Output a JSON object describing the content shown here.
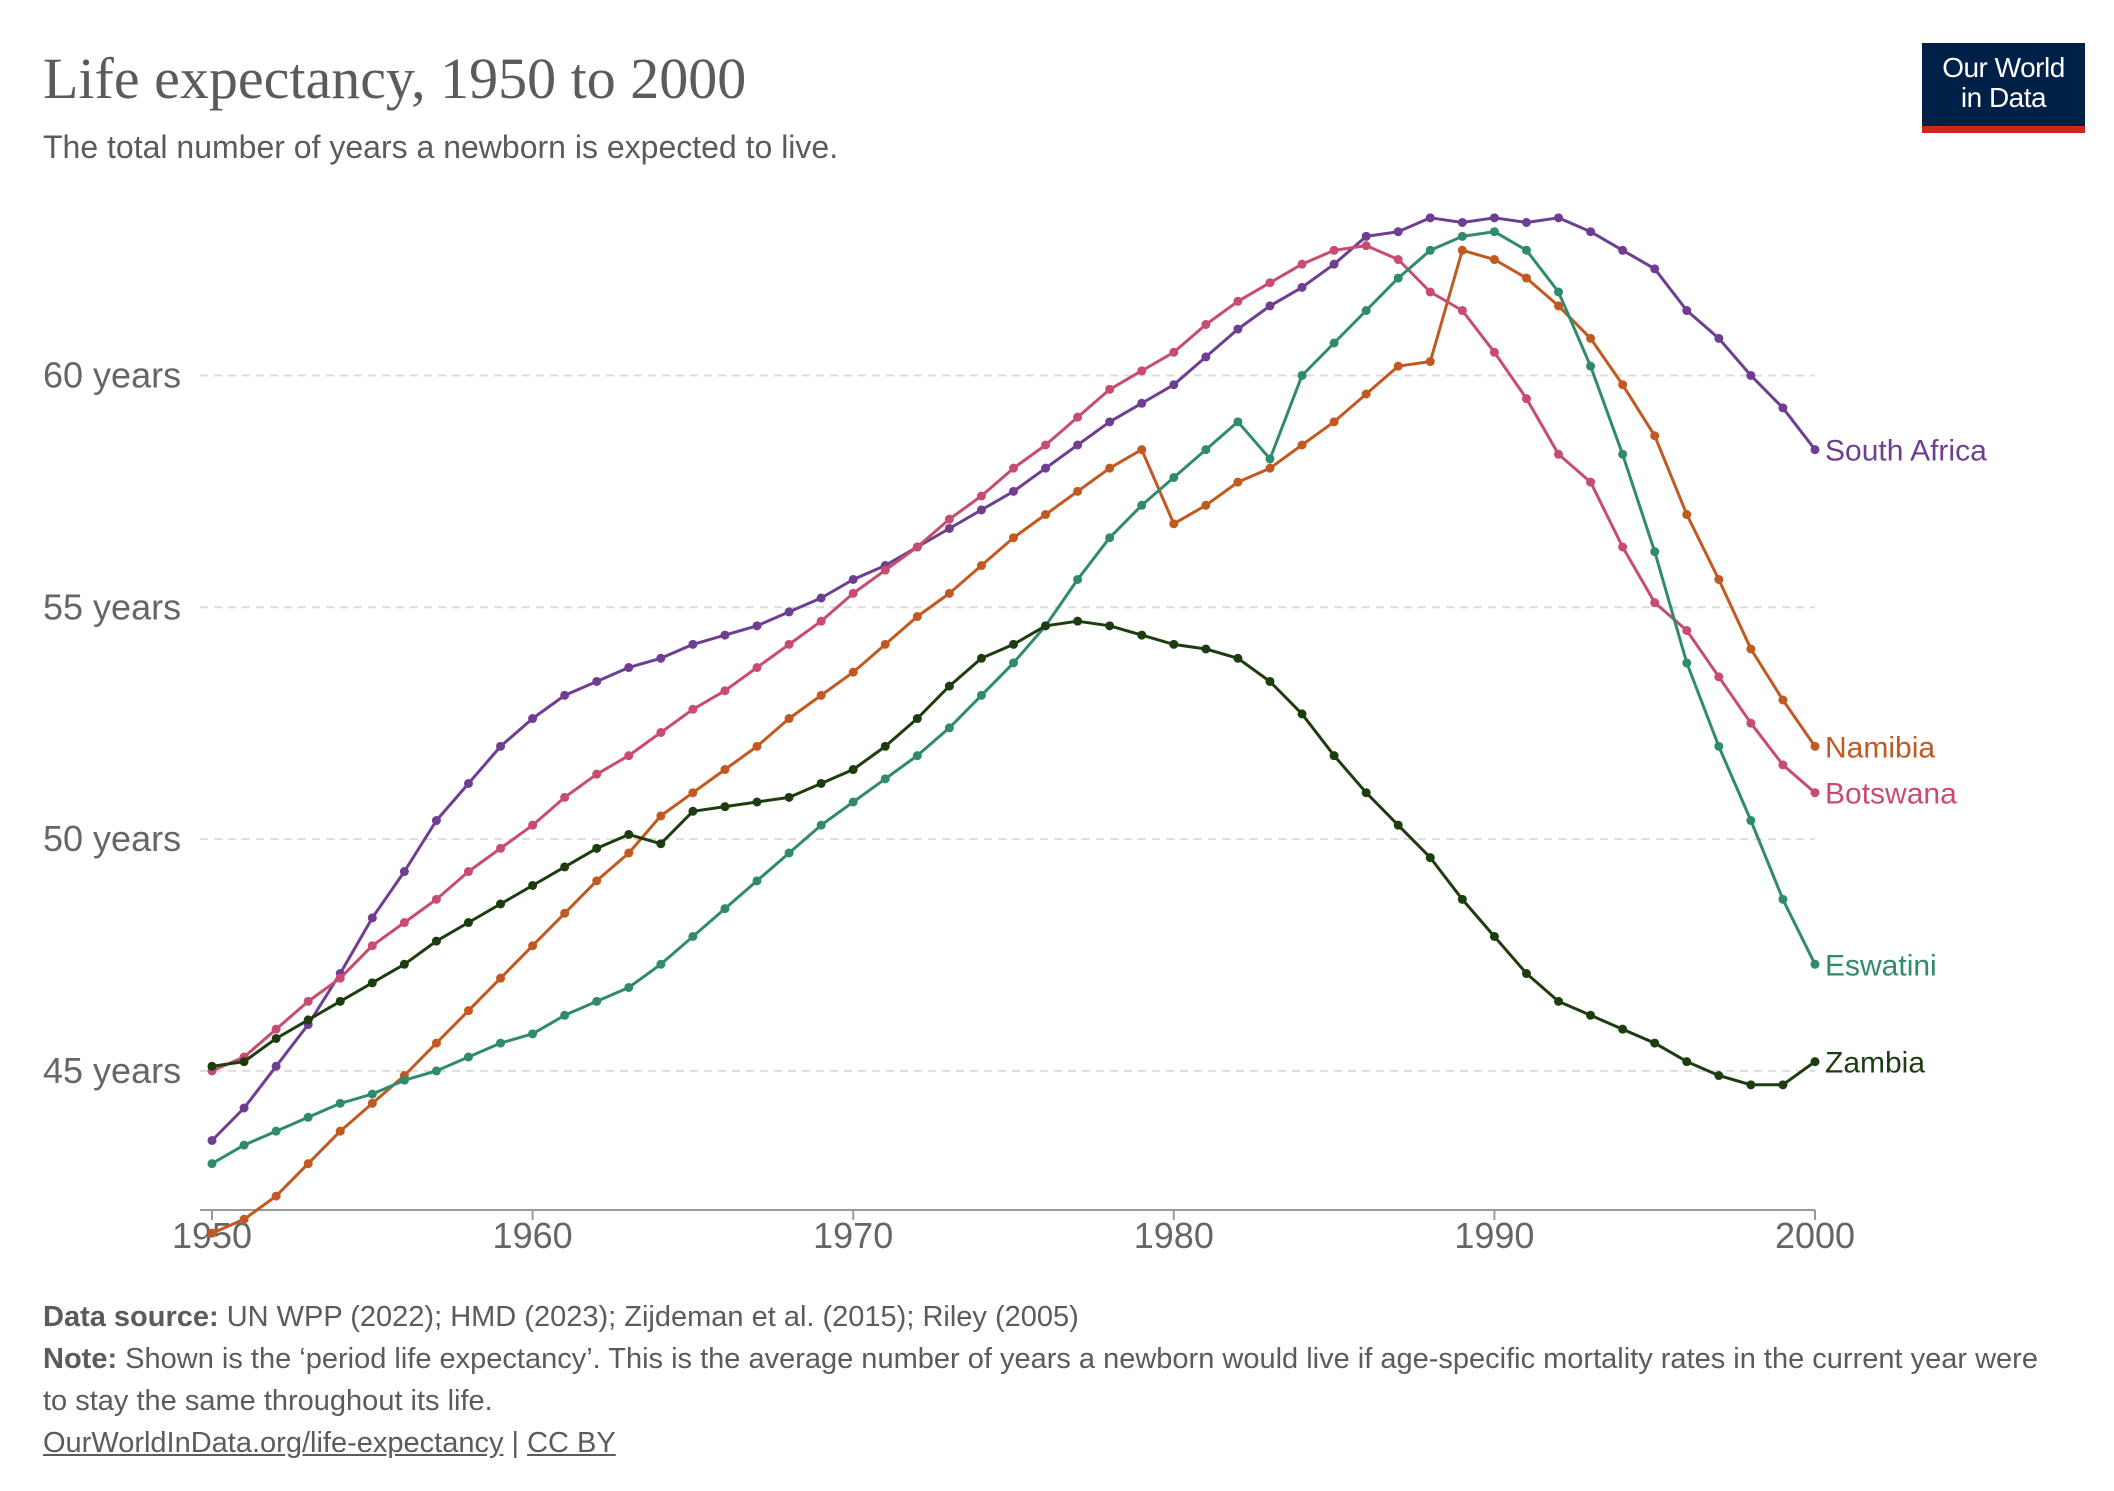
{
  "title": "Life expectancy, 1950 to 2000",
  "subtitle": "The total number of years a newborn is expected to live.",
  "logo": {
    "line1": "Our World",
    "line2": "in Data",
    "bg": "#002147",
    "accent": "#ce261e"
  },
  "footer": {
    "source_label": "Data source:",
    "source_text": " UN WPP (2022); HMD (2023); Zijdeman et al. (2015); Riley (2005)",
    "note_label": "Note:",
    "note_text": " Shown is the ‘period life expectancy’. This is the average number of years a newborn would live if age-specific mortality rates in the current year were to stay the same throughout its life.",
    "link_text": "OurWorldInData.org/life-expectancy",
    "separator": " | ",
    "license_text": "CC BY"
  },
  "chart_data": {
    "type": "line",
    "title": "Life expectancy, 1950 to 2000",
    "xlabel": "",
    "ylabel": "",
    "xlim": [
      1950,
      2000
    ],
    "ylim": [
      42,
      64
    ],
    "x_ticks": [
      {
        "value": 1950,
        "label": "1950"
      },
      {
        "value": 1960,
        "label": "1960"
      },
      {
        "value": 1970,
        "label": "1970"
      },
      {
        "value": 1980,
        "label": "1980"
      },
      {
        "value": 1990,
        "label": "1990"
      },
      {
        "value": 2000,
        "label": "2000"
      }
    ],
    "y_ticks": [
      {
        "value": 45,
        "label": "45 years"
      },
      {
        "value": 50,
        "label": "50 years"
      },
      {
        "value": 55,
        "label": "55 years"
      },
      {
        "value": 60,
        "label": "60 years"
      }
    ],
    "grid": true,
    "x": [
      1950,
      1951,
      1952,
      1953,
      1954,
      1955,
      1956,
      1957,
      1958,
      1959,
      1960,
      1961,
      1962,
      1963,
      1964,
      1965,
      1966,
      1967,
      1968,
      1969,
      1970,
      1971,
      1972,
      1973,
      1974,
      1975,
      1976,
      1977,
      1978,
      1979,
      1980,
      1981,
      1982,
      1983,
      1984,
      1985,
      1986,
      1987,
      1988,
      1989,
      1990,
      1991,
      1992,
      1993,
      1994,
      1995,
      1996,
      1997,
      1998,
      1999,
      2000
    ],
    "series": [
      {
        "name": "South Africa",
        "color": "#6d3e91",
        "values": [
          43.5,
          44.2,
          45.1,
          46.0,
          47.1,
          48.3,
          49.3,
          50.4,
          51.2,
          52.0,
          52.6,
          53.1,
          53.4,
          53.7,
          53.9,
          54.2,
          54.4,
          54.6,
          54.9,
          55.2,
          55.6,
          55.9,
          56.3,
          56.7,
          57.1,
          57.5,
          58.0,
          58.5,
          59.0,
          59.4,
          59.8,
          60.4,
          61.0,
          61.5,
          61.9,
          62.4,
          63.0,
          63.1,
          63.4,
          63.3,
          63.4,
          63.3,
          63.4,
          63.1,
          62.7,
          62.3,
          61.4,
          60.8,
          60.0,
          59.3,
          58.4
        ]
      },
      {
        "name": "Namibia",
        "color": "#c15920",
        "values": [
          41.5,
          41.8,
          42.3,
          43.0,
          43.7,
          44.3,
          44.9,
          45.6,
          46.3,
          47.0,
          47.7,
          48.4,
          49.1,
          49.7,
          50.5,
          51.0,
          51.5,
          52.0,
          52.6,
          53.1,
          53.6,
          54.2,
          54.8,
          55.3,
          55.9,
          56.5,
          57.0,
          57.5,
          58.0,
          58.4,
          56.8,
          57.2,
          57.7,
          58.0,
          58.5,
          59.0,
          59.6,
          60.2,
          60.3,
          62.7,
          62.5,
          62.1,
          61.5,
          60.8,
          59.8,
          58.7,
          57.0,
          55.6,
          54.1,
          53.0,
          52.0
        ]
      },
      {
        "name": "Botswana",
        "color": "#c84c6f",
        "values": [
          45.0,
          45.3,
          45.9,
          46.5,
          47.0,
          47.7,
          48.2,
          48.7,
          49.3,
          49.8,
          50.3,
          50.9,
          51.4,
          51.8,
          52.3,
          52.8,
          53.2,
          53.7,
          54.2,
          54.7,
          55.3,
          55.8,
          56.3,
          56.9,
          57.4,
          58.0,
          58.5,
          59.1,
          59.7,
          60.1,
          60.5,
          61.1,
          61.6,
          62.0,
          62.4,
          62.7,
          62.8,
          62.5,
          61.8,
          61.4,
          60.5,
          59.5,
          58.3,
          57.7,
          56.3,
          55.1,
          54.5,
          53.5,
          52.5,
          51.6,
          51.0
        ]
      },
      {
        "name": "Eswatini",
        "color": "#2f8a6e",
        "values": [
          43.0,
          43.4,
          43.7,
          44.0,
          44.3,
          44.5,
          44.8,
          45.0,
          45.3,
          45.6,
          45.8,
          46.2,
          46.5,
          46.8,
          47.3,
          47.9,
          48.5,
          49.1,
          49.7,
          50.3,
          50.8,
          51.3,
          51.8,
          52.4,
          53.1,
          53.8,
          54.6,
          55.6,
          56.5,
          57.2,
          57.8,
          58.4,
          59.0,
          58.2,
          60.0,
          60.7,
          61.4,
          62.1,
          62.7,
          63.0,
          63.1,
          62.7,
          61.8,
          60.2,
          58.3,
          56.2,
          53.8,
          52.0,
          50.4,
          48.7,
          47.3
        ]
      },
      {
        "name": "Zambia",
        "color": "#1d3d10",
        "values": [
          45.1,
          45.2,
          45.7,
          46.1,
          46.5,
          46.9,
          47.3,
          47.8,
          48.2,
          48.6,
          49.0,
          49.4,
          49.8,
          50.1,
          49.9,
          50.6,
          50.7,
          50.8,
          50.9,
          51.2,
          51.5,
          52.0,
          52.6,
          53.3,
          53.9,
          54.2,
          54.6,
          54.7,
          54.6,
          54.4,
          54.2,
          54.1,
          53.9,
          53.4,
          52.7,
          51.8,
          51.0,
          50.3,
          49.6,
          48.7,
          47.9,
          47.1,
          46.5,
          46.2,
          45.9,
          45.6,
          45.2,
          44.9,
          44.7,
          44.7,
          45.2
        ]
      }
    ],
    "legend": "direct labels at line ends, right side"
  }
}
